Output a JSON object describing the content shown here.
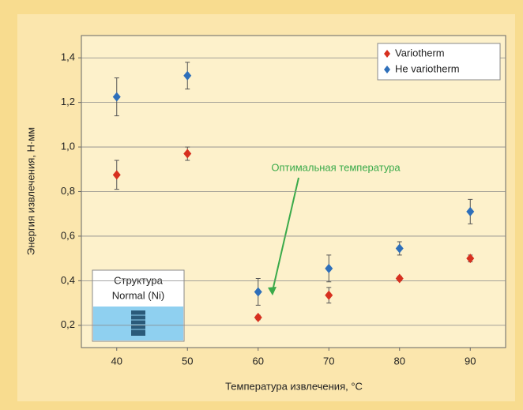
{
  "chart_data": {
    "type": "scatter",
    "x_label": "Температура извлечения, °C",
    "y_label": "Энергия извлечения, Н·мм",
    "annotation": "Оптимальная температура",
    "inset": [
      "Структура",
      "Normal (Ni)"
    ],
    "x": [
      40,
      50,
      60,
      70,
      80,
      90
    ],
    "series": [
      {
        "name": "Variotherm",
        "color": "#d7301f",
        "values": [
          0.875,
          0.97,
          0.235,
          0.335,
          0.41,
          0.5
        ],
        "errors": [
          0.065,
          0.03,
          0.01,
          0.035,
          0.01,
          0.015
        ]
      },
      {
        "name": "He variotherm",
        "color": "#2e6fba",
        "values": [
          1.225,
          1.32,
          0.35,
          0.455,
          0.545,
          0.71
        ],
        "errors": [
          0.085,
          0.06,
          0.06,
          0.06,
          0.03,
          0.055
        ]
      }
    ],
    "xlim": [
      35,
      95
    ],
    "xticks": [
      40,
      50,
      60,
      70,
      80,
      90
    ],
    "ylim": [
      0.1,
      1.5
    ],
    "yticks": [
      {
        "value": 0.2,
        "label": "0,2"
      },
      {
        "value": 0.4,
        "label": "0,4"
      },
      {
        "value": 0.6,
        "label": "0,6"
      },
      {
        "value": 0.8,
        "label": "0,8"
      },
      {
        "value": 1.0,
        "label": "1,0"
      },
      {
        "value": 1.2,
        "label": "1,2"
      },
      {
        "value": 1.4,
        "label": "1,4"
      }
    ],
    "grid": true,
    "legend": "upper right"
  }
}
